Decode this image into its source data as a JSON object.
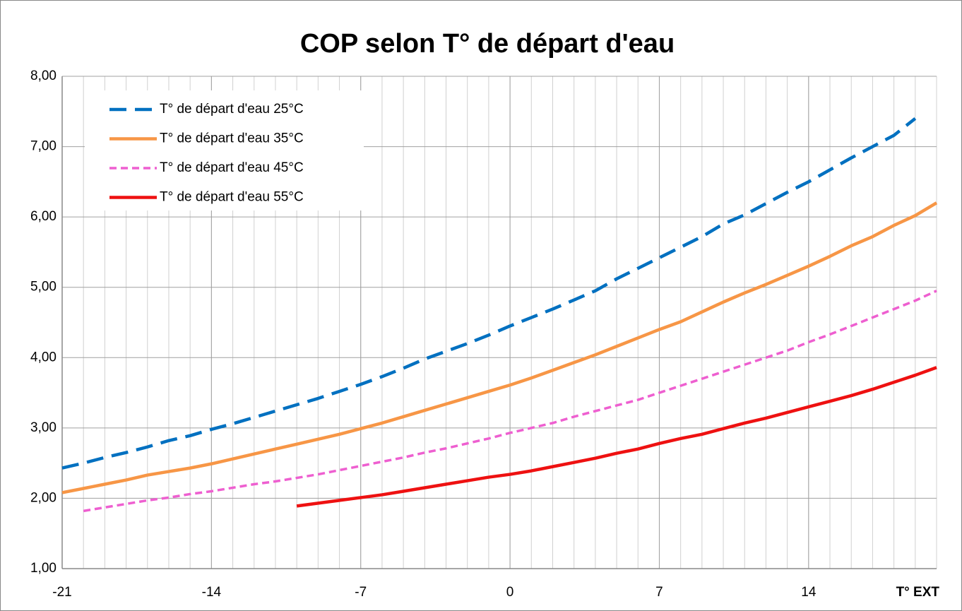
{
  "chart_data": {
    "type": "line",
    "title": "COP selon T° de départ d'eau",
    "x_label": "T° EXT",
    "x": [
      -21,
      -20,
      -19,
      -18,
      -17,
      -16,
      -15,
      -14,
      -13,
      -12,
      -11,
      -10,
      -9,
      -8,
      -7,
      -6,
      -5,
      -4,
      -3,
      -2,
      -1,
      0,
      1,
      2,
      3,
      4,
      5,
      6,
      7,
      8,
      9,
      10,
      11,
      12,
      13,
      14,
      15,
      16,
      17,
      18,
      19,
      20
    ],
    "series": [
      {
        "name": "T° de départ d'eau 25°C",
        "color": "#0070c0",
        "dash": "long",
        "values": [
          2.43,
          2.5,
          2.58,
          2.65,
          2.73,
          2.82,
          2.89,
          2.98,
          3.06,
          3.15,
          3.24,
          3.33,
          3.42,
          3.52,
          3.62,
          3.73,
          3.85,
          3.98,
          4.09,
          4.2,
          4.32,
          4.45,
          4.57,
          4.69,
          4.82,
          4.95,
          5.12,
          5.27,
          5.42,
          5.57,
          5.72,
          5.9,
          6.03,
          6.19,
          6.35,
          6.5,
          6.67,
          6.84,
          7.0,
          7.16,
          7.4,
          null
        ]
      },
      {
        "name": "T° de départ d'eau 35°C",
        "color": "#f79646",
        "dash": "solid",
        "values": [
          2.08,
          2.14,
          2.2,
          2.26,
          2.33,
          2.38,
          2.43,
          2.49,
          2.56,
          2.63,
          2.7,
          2.77,
          2.84,
          2.91,
          2.99,
          3.07,
          3.16,
          3.25,
          3.34,
          3.43,
          3.52,
          3.61,
          3.71,
          3.82,
          3.93,
          4.04,
          4.16,
          4.28,
          4.4,
          4.51,
          4.65,
          4.79,
          4.92,
          5.04,
          5.17,
          5.3,
          5.44,
          5.59,
          5.72,
          5.88,
          6.02,
          6.2
        ]
      },
      {
        "name": "T° de départ d'eau 45°C",
        "color": "#ee5fd0",
        "dash": "short",
        "values": [
          null,
          1.82,
          1.87,
          1.92,
          1.97,
          2.01,
          2.06,
          2.1,
          2.15,
          2.2,
          2.24,
          2.29,
          2.34,
          2.4,
          2.46,
          2.52,
          2.58,
          2.65,
          2.71,
          2.78,
          2.85,
          2.93,
          3.0,
          3.07,
          3.16,
          3.24,
          3.32,
          3.4,
          3.5,
          3.6,
          3.7,
          3.8,
          3.9,
          4.0,
          4.1,
          4.22,
          4.33,
          4.45,
          4.57,
          4.69,
          4.81,
          4.95
        ]
      },
      {
        "name": "T° de départ d'eau 55°C",
        "color": "#ee1111",
        "dash": "solid",
        "values": [
          null,
          null,
          null,
          null,
          null,
          null,
          null,
          null,
          null,
          null,
          null,
          1.89,
          1.93,
          1.97,
          2.01,
          2.05,
          2.1,
          2.15,
          2.2,
          2.25,
          2.3,
          2.34,
          2.39,
          2.45,
          2.51,
          2.57,
          2.64,
          2.7,
          2.78,
          2.85,
          2.91,
          2.99,
          3.07,
          3.14,
          3.22,
          3.3,
          3.38,
          3.46,
          3.55,
          3.65,
          3.75,
          3.86
        ]
      }
    ],
    "xlim": [
      -21,
      20
    ],
    "xticks": [
      -21,
      -14,
      -7,
      0,
      7,
      14
    ],
    "ylim": [
      1,
      8
    ],
    "yticks": [
      {
        "value": 1,
        "label": "1,00"
      },
      {
        "value": 2,
        "label": "2,00"
      },
      {
        "value": 3,
        "label": "3,00"
      },
      {
        "value": 4,
        "label": "4,00"
      },
      {
        "value": 5,
        "label": "5,00"
      },
      {
        "value": 6,
        "label": "6,00"
      },
      {
        "value": 7,
        "label": "7,00"
      },
      {
        "value": 8,
        "label": "8,00"
      }
    ],
    "grid": true,
    "legend": "top-left"
  }
}
